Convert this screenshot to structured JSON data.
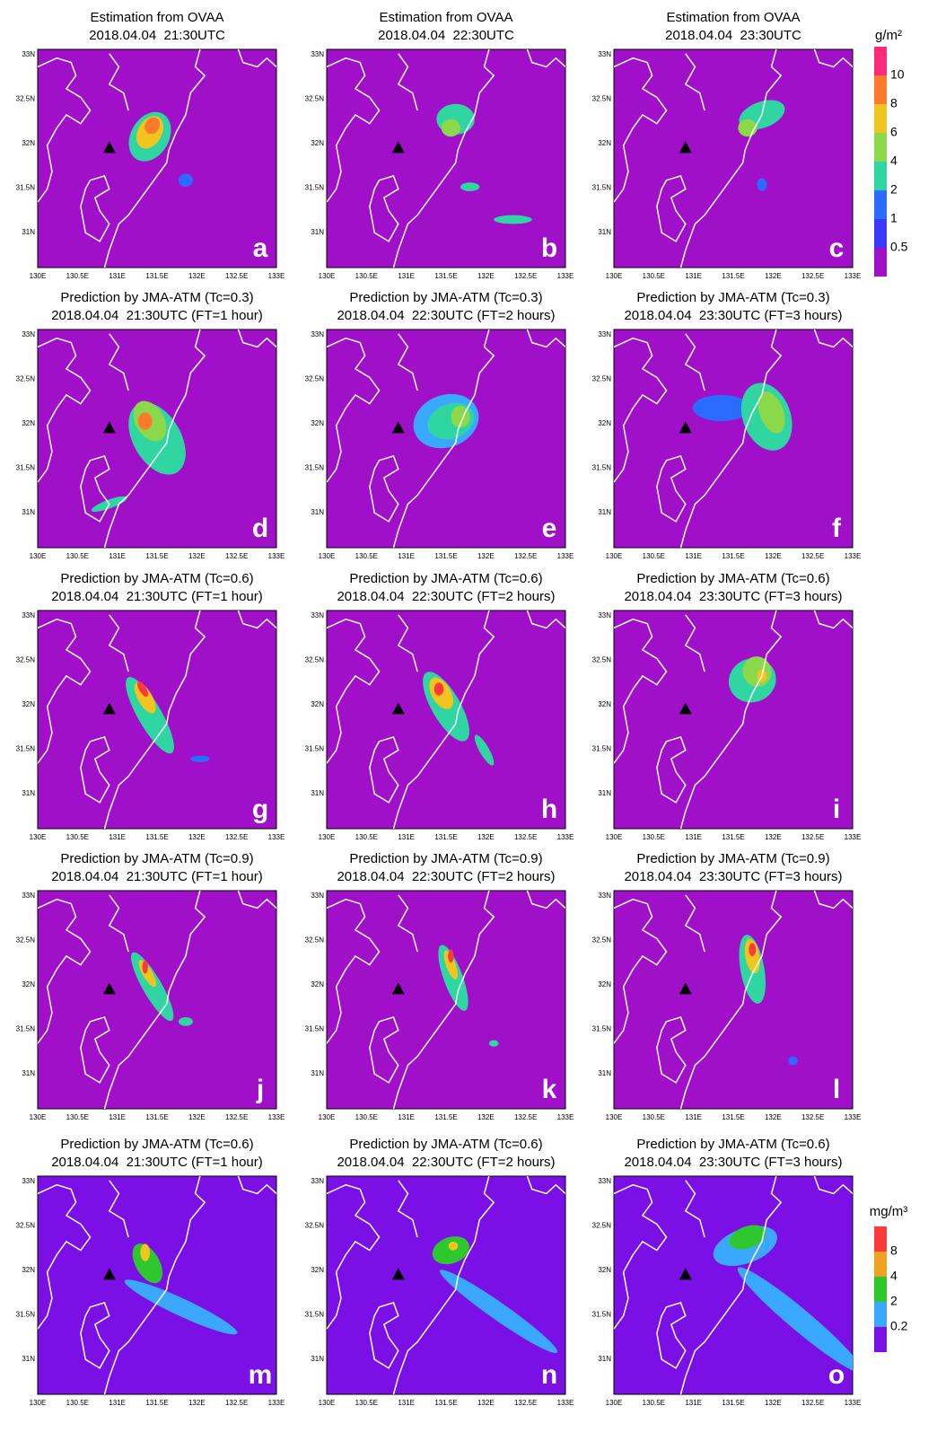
{
  "panels": [
    {
      "title": [
        "Estimation from OVAA",
        "2018.04.04  21:30UTC"
      ],
      "letter": "a"
    },
    {
      "title": [
        "Estimation from OVAA",
        "2018.04.04  22:30UTC"
      ],
      "letter": "b"
    },
    {
      "title": [
        "Estimation from OVAA",
        "2018.04.04  23:30UTC"
      ],
      "letter": "c"
    },
    {
      "title": [
        "Prediction by JMA-ATM (Tc=0.3)",
        "2018.04.04  21:30UTC (FT=1 hour)"
      ],
      "letter": "d"
    },
    {
      "title": [
        "Prediction by JMA-ATM (Tc=0.3)",
        "2018.04.04  22:30UTC (FT=2 hours)"
      ],
      "letter": "e"
    },
    {
      "title": [
        "Prediction by JMA-ATM (Tc=0.3)",
        "2018.04.04  23:30UTC (FT=3 hours)"
      ],
      "letter": "f"
    },
    {
      "title": [
        "Prediction by JMA-ATM (Tc=0.6)",
        "2018.04.04  21:30UTC (FT=1 hour)"
      ],
      "letter": "g"
    },
    {
      "title": [
        "Prediction by JMA-ATM (Tc=0.6)",
        "2018.04.04  22:30UTC (FT=2 hours)"
      ],
      "letter": "h"
    },
    {
      "title": [
        "Prediction by JMA-ATM (Tc=0.6)",
        "2018.04.04  23:30UTC (FT=3 hours)"
      ],
      "letter": "i"
    },
    {
      "title": [
        "Prediction by JMA-ATM (Tc=0.9)",
        "2018.04.04  21:30UTC (FT=1 hour)"
      ],
      "letter": "j"
    },
    {
      "title": [
        "Prediction by JMA-ATM (Tc=0.9)",
        "2018.04.04  22:30UTC (FT=2 hours)"
      ],
      "letter": "k"
    },
    {
      "title": [
        "Prediction by JMA-ATM (Tc=0.9)",
        "2018.04.04  23:30UTC (FT=3 hours)"
      ],
      "letter": "l"
    },
    {
      "title": [
        "Prediction by JMA-ATM (Tc=0.6)",
        "2018.04.04  21:30UTC (FT=1 hour)"
      ],
      "letter": "m"
    },
    {
      "title": [
        "Prediction by JMA-ATM (Tc=0.6)",
        "2018.04.04  22:30UTC (FT=2 hours)"
      ],
      "letter": "n"
    },
    {
      "title": [
        "Prediction by JMA-ATM (Tc=0.6)",
        "2018.04.04  23:30UTC (FT=3 hours)"
      ],
      "letter": "o"
    }
  ],
  "lon_ticks": [
    "130E",
    "130.5E",
    "131E",
    "131.5E",
    "132E",
    "132.5E",
    "133E"
  ],
  "lat_ticks": [
    "33N",
    "32.5N",
    "32N",
    "31.5N",
    "31N"
  ],
  "colorbars": [
    {
      "unit": "g/m²",
      "labels": [
        "10",
        "8",
        "6",
        "4",
        "2",
        "1",
        "0.5"
      ]
    },
    {
      "unit": "mg/m³",
      "labels": [
        "8",
        "4",
        "2",
        "0.2"
      ]
    }
  ]
}
